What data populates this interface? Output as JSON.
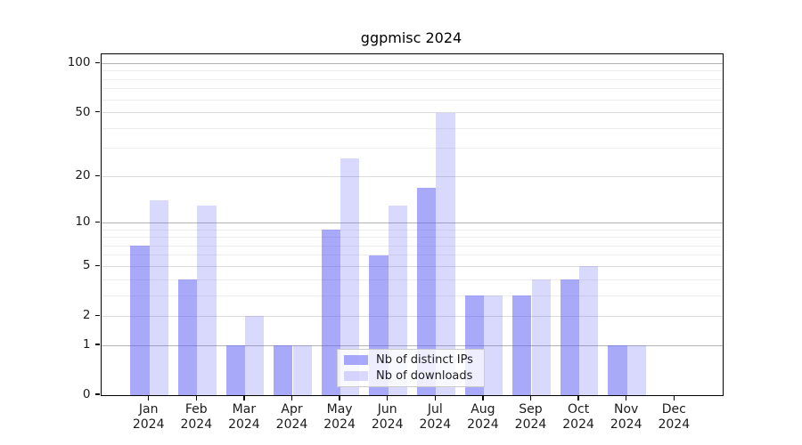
{
  "figure": {
    "title": "ggpmisc 2024"
  },
  "chart_data": {
    "type": "bar",
    "title": "ggpmisc 2024",
    "y_scale": "log1p",
    "grid": true,
    "categories": [
      "Jan",
      "Feb",
      "Mar",
      "Apr",
      "May",
      "Jun",
      "Jul",
      "Aug",
      "Sep",
      "Oct",
      "Nov",
      "Dec"
    ],
    "year_label": "2024",
    "series": [
      {
        "name": "Nb of distinct IPs",
        "color": "rgba(90,90,245,0.52)",
        "values": [
          7,
          4,
          1,
          1,
          9,
          6,
          17,
          3,
          3,
          4,
          1,
          0
        ]
      },
      {
        "name": "Nb of downloads",
        "color": "rgba(90,90,245,0.23)",
        "values": [
          14,
          13,
          2,
          1,
          26,
          13,
          50,
          3,
          4,
          5,
          1,
          0
        ]
      }
    ],
    "y_ticks": [
      0,
      1,
      2,
      5,
      10,
      20,
      50,
      100
    ],
    "y_minor_grid": [
      3,
      4,
      6,
      7,
      8,
      9,
      30,
      40,
      60,
      70,
      80,
      90
    ],
    "y_decade_grid": [
      1,
      10,
      100
    ],
    "ylim": [
      0,
      114
    ],
    "legend_position": "bottom-center-inside",
    "colors": {
      "decade_grid": "#b3b3b3",
      "major_grid": "#dcdcdc",
      "minor_grid": "#ededed",
      "axis": "#000000",
      "tick_label": "#1c1c1c"
    }
  }
}
